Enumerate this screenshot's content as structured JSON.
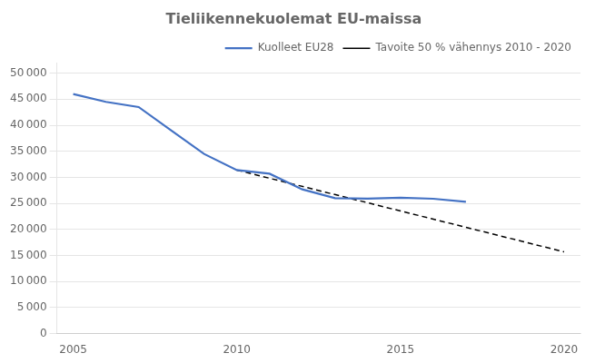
{
  "chart_data": {
    "type": "line",
    "title": "Tieliikennekuolemat EU-maissa",
    "series": [
      {
        "name": "Kuolleet EU28",
        "color": "#4472C4",
        "line_style": "solid",
        "x": [
          2005,
          2006,
          2007,
          2008,
          2009,
          2010,
          2011,
          2012,
          2013,
          2014,
          2015,
          2016,
          2017
        ],
        "values": [
          46000,
          44500,
          43500,
          39000,
          34500,
          31400,
          30700,
          27700,
          26000,
          25900,
          26100,
          25900,
          25300
        ]
      },
      {
        "name": "Tavoite 50 % vähennys 2010 - 2020",
        "color": "#000000",
        "line_style": "dashed",
        "x": [
          2010,
          2020
        ],
        "values": [
          31400,
          15700
        ]
      }
    ],
    "xlim": [
      2004.5,
      2020.5
    ],
    "xticks": [
      2005,
      2010,
      2015,
      2020
    ],
    "ylim": [
      0,
      52000
    ],
    "yticks": [
      0,
      {
        "value": 5000,
        "label": "5 000"
      },
      {
        "value": 10000,
        "label": "10 000"
      },
      {
        "value": 15000,
        "label": "15 000"
      },
      {
        "value": 20000,
        "label": "20 000"
      },
      {
        "value": 25000,
        "label": "25 000"
      },
      {
        "value": 30000,
        "label": "30 000"
      },
      {
        "value": 35000,
        "label": "35 000"
      },
      {
        "value": 40000,
        "label": "40 000"
      },
      {
        "value": 45000,
        "label": "45 000"
      },
      {
        "value": 50000,
        "label": "50 000"
      }
    ],
    "grid": "y",
    "legend": "upper right"
  }
}
